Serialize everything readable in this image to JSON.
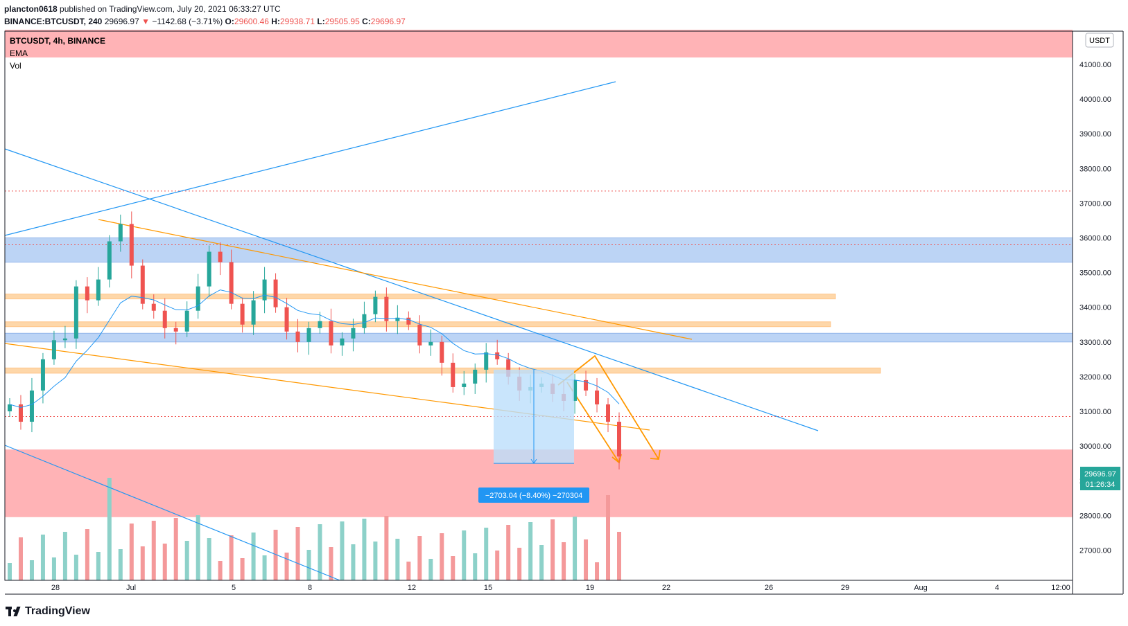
{
  "header": {
    "publisher": "plancton0618",
    "published_text": "published on TradingView.com, July 20, 2021 06:33:27 UTC",
    "symbol_full": "BINANCE:BTCUSDT, 240",
    "last": "29696.97",
    "change_arrow": "▼",
    "change": "−1142.68 (−3.71%)",
    "o_label": "O:",
    "o": "29600.46",
    "h_label": "H:",
    "h": "29938.71",
    "l_label": "L:",
    "l": "29505.95",
    "c_label": "C:",
    "c": "29696.97"
  },
  "legend": {
    "symbol": "BTCUSDT, 4h, BINANCE",
    "ema": "EMA",
    "vol": "Vol"
  },
  "currency_badge": "USDT",
  "price_badge": {
    "price": "29696.97",
    "countdown": "01:26:34"
  },
  "measure_label": "−2703.04 (−8.40%) −270304",
  "footer": {
    "brand": "TradingView"
  },
  "colors": {
    "up": "#26a69a",
    "down": "#ef5350",
    "vol_up": "#8dd1c9",
    "vol_down": "#f4999a",
    "blue_line": "#2196f3",
    "orange_line": "#ff9800",
    "red_zone": "#ffb3b6",
    "blue_zone": "#bcd4f5",
    "orange_zone": "#fed7a9",
    "measure_fill": "#bbdefb",
    "badge_green": "#26a69a"
  },
  "chart_data": {
    "type": "candlestick",
    "y_axis_labels": [
      "41000.00",
      "40000.00",
      "39000.00",
      "38000.00",
      "37000.00",
      "36000.00",
      "35000.00",
      "34000.00",
      "33000.00",
      "32000.00",
      "31000.00",
      "30000.00",
      "29000.00",
      "28000.00",
      "27000.00"
    ],
    "x_axis_labels": [
      "28",
      "Jul",
      "5",
      "8",
      "12",
      "15",
      "19",
      "22",
      "26",
      "29",
      "Aug",
      "4",
      "12:00"
    ],
    "ylim": [
      26800,
      42000
    ],
    "candles_close_approx": [
      31200,
      30700,
      31600,
      32500,
      33050,
      33100,
      34600,
      34200,
      34800,
      35900,
      36400,
      35200,
      34100,
      33900,
      33400,
      33300,
      33900,
      34600,
      35600,
      35300,
      34100,
      33500,
      34200,
      34800,
      34000,
      33300,
      33000,
      33400,
      33600,
      32900,
      33100,
      33400,
      33800,
      34300,
      33600,
      33700,
      33500,
      32900,
      33000,
      32400,
      31700,
      31800,
      32200,
      32700,
      32500,
      32000,
      31600,
      31700,
      31800,
      31500,
      31300,
      31900,
      31600,
      31200,
      30700,
      29697
    ],
    "horizontal_levels": [
      {
        "type": "red_zone",
        "from": 41200,
        "to": 42000
      },
      {
        "type": "dotted_red",
        "price": 37350
      },
      {
        "type": "blue_zone",
        "from": 35300,
        "to": 36000
      },
      {
        "type": "orange_zone",
        "from": 34250,
        "to": 34380
      },
      {
        "type": "orange_zone",
        "from": 33450,
        "to": 33580
      },
      {
        "type": "blue_zone",
        "from": 33000,
        "to": 33250
      },
      {
        "type": "orange_zone",
        "from": 32100,
        "to": 32250
      },
      {
        "type": "dotted_red",
        "price": 30850
      },
      {
        "type": "red_zone",
        "from": 27950,
        "to": 29900
      }
    ],
    "measure": {
      "from": 32200,
      "to": 29500,
      "change": -2703.04,
      "pct": -8.4
    }
  }
}
